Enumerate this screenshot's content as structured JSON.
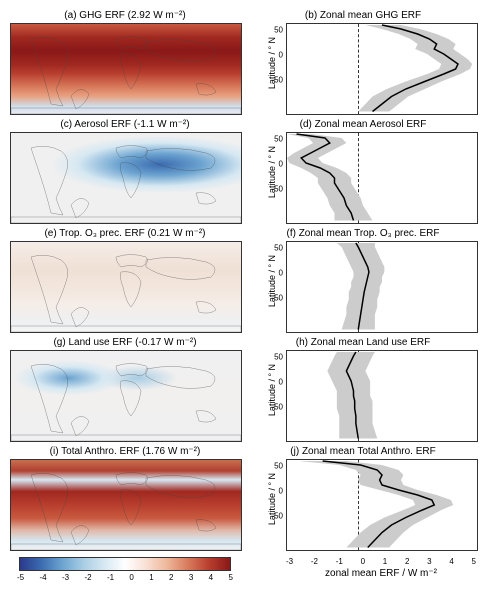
{
  "xlim": [
    -3,
    5
  ],
  "xtick_labels": [
    "-3",
    "-2",
    "-1",
    "0",
    "1",
    "2",
    "3",
    "4",
    "5"
  ],
  "xaxis_label": "zonal mean ERF / W m⁻²",
  "colorbar_ticks": [
    "-5",
    "-4",
    "-3",
    "-2",
    "-1",
    "0",
    "1",
    "2",
    "3",
    "4",
    "5"
  ],
  "colorbar_gradient": [
    "#2a3a8c",
    "#3b6bb0",
    "#6ba3d0",
    "#a8cde4",
    "#d6e8f2",
    "#ffffff",
    "#f8e0d4",
    "#eeb79a",
    "#d87a5c",
    "#b83e2e",
    "#8a1818"
  ],
  "ylabel": "Latitude / ° N",
  "ytick_values": [
    50,
    0,
    -50
  ],
  "lat_range": [
    -90,
    90
  ],
  "uncertainty_color": "#cccccc",
  "line_color": "#000000",
  "panels": [
    {
      "map_title": "(a) GHG ERF (2.92 W m⁻²)",
      "zonal_title": "(b) Zonal mean GHG ERF",
      "map_gradient": "linear-gradient(180deg,#c95a40 0%,#a02820 15%,#8a1818 30%,#a02820 45%,#b83e2e 55%,#d87a5c 70%,#e8a080 80%,#d0e0ee 92%,#e8e8f0 100%)",
      "lats": [
        -85,
        -70,
        -55,
        -40,
        -25,
        -10,
        0,
        10,
        20,
        30,
        40,
        50,
        60,
        70,
        80,
        88
      ],
      "vals": [
        0.6,
        1.0,
        1.4,
        2.0,
        2.8,
        3.6,
        4.1,
        4.2,
        3.9,
        3.6,
        3.2,
        3.3,
        3.0,
        2.5,
        1.8,
        1.0
      ],
      "low": [
        0.0,
        0.3,
        0.6,
        1.2,
        2.0,
        2.9,
        3.4,
        3.5,
        3.2,
        2.9,
        2.4,
        2.5,
        2.2,
        1.7,
        1.0,
        0.3
      ],
      "high": [
        1.3,
        1.7,
        2.1,
        2.8,
        3.5,
        4.3,
        4.7,
        4.8,
        4.6,
        4.3,
        4.0,
        4.1,
        3.8,
        3.3,
        2.6,
        1.8
      ]
    },
    {
      "map_title": "(c) Aerosol ERF (-1.1 W m⁻²)",
      "zonal_title": "(d) Zonal mean Aerosol ERF",
      "map_gradient": "radial-gradient(ellipse 60% 40% at 65% 35%, #3b6bb0 0%, #6ba3d0 30%, #d6e8f2 60%, #f0f0f0 80%), linear-gradient(180deg,#c8d8e8 0%,#d6e8f2 30%,#e8f0f5 60%,#f0f0f0 100%)",
      "lats": [
        -85,
        -70,
        -55,
        -40,
        -25,
        -10,
        0,
        10,
        20,
        30,
        40,
        50,
        60,
        70,
        80,
        88
      ],
      "vals": [
        -0.2,
        -0.3,
        -0.5,
        -0.6,
        -0.8,
        -1.0,
        -1.0,
        -1.2,
        -1.6,
        -2.2,
        -2.4,
        -2.0,
        -1.6,
        -1.2,
        -1.4,
        -2.6
      ],
      "low": [
        -1.0,
        -1.0,
        -1.2,
        -1.3,
        -1.5,
        -1.7,
        -1.7,
        -2.0,
        -2.4,
        -2.9,
        -3.0,
        -2.7,
        -2.3,
        -1.9,
        -2.1,
        -3.0
      ],
      "high": [
        0.6,
        0.4,
        0.2,
        0.1,
        -0.1,
        -0.3,
        -0.3,
        -0.5,
        -0.9,
        -1.5,
        -1.7,
        -1.3,
        -0.9,
        -0.5,
        -0.7,
        -2.0
      ]
    },
    {
      "map_title": "(e) Trop. O₃ prec. ERF (0.21 W m⁻²)",
      "zonal_title": "(f) Zonal mean Trop. O₃ prec. ERF",
      "map_gradient": "linear-gradient(180deg,#f5ede8 0%,#f0e0d5 30%,#f2e6dd 50%,#f5ede8 70%,#eef0f3 90%,#f5f5f5 100%)",
      "lats": [
        -85,
        -70,
        -55,
        -40,
        -25,
        -10,
        0,
        10,
        20,
        30,
        40,
        50,
        60,
        70,
        80,
        88
      ],
      "vals": [
        0.0,
        0.05,
        0.1,
        0.15,
        0.2,
        0.25,
        0.3,
        0.35,
        0.4,
        0.45,
        0.4,
        0.3,
        0.2,
        0.1,
        0.0,
        -0.1
      ],
      "low": [
        -0.7,
        -0.6,
        -0.5,
        -0.5,
        -0.4,
        -0.4,
        -0.3,
        -0.3,
        -0.2,
        -0.2,
        -0.3,
        -0.4,
        -0.5,
        -0.6,
        -0.7,
        -0.9
      ],
      "high": [
        0.7,
        0.7,
        0.7,
        0.8,
        0.8,
        0.9,
        0.9,
        1.0,
        1.0,
        1.1,
        1.1,
        1.0,
        0.9,
        0.8,
        0.7,
        0.7
      ]
    },
    {
      "map_title": "(g) Land use ERF (-0.17 W m⁻²)",
      "zonal_title": "(h) Zonal mean Land use ERF",
      "map_gradient": "radial-gradient(ellipse 30% 25% at 25% 30%, #6ba3d0 0%, #d6e8f2 50%, transparent 80%), radial-gradient(ellipse 25% 20% at 55% 30%, #a8cde4 0%, transparent 70%), linear-gradient(180deg,#f0f0f2 0%,#f2f0ee 50%,#f0f0f2 100%)",
      "lats": [
        -85,
        -70,
        -55,
        -40,
        -25,
        -10,
        0,
        10,
        20,
        30,
        40,
        50,
        60,
        70,
        80,
        88
      ],
      "vals": [
        0.0,
        -0.05,
        -0.1,
        -0.1,
        -0.15,
        -0.15,
        -0.2,
        -0.2,
        -0.25,
        -0.3,
        -0.4,
        -0.5,
        -0.4,
        -0.3,
        -0.2,
        -0.1
      ],
      "low": [
        -0.8,
        -0.8,
        -0.8,
        -0.8,
        -0.9,
        -0.9,
        -0.9,
        -0.9,
        -1.0,
        -1.1,
        -1.2,
        -1.3,
        -1.2,
        -1.1,
        -1.0,
        -0.9
      ],
      "high": [
        0.8,
        0.7,
        0.6,
        0.6,
        0.6,
        0.6,
        0.5,
        0.5,
        0.5,
        0.5,
        0.4,
        0.3,
        0.4,
        0.5,
        0.6,
        0.7
      ]
    },
    {
      "map_title": "(i) Total Anthro. ERF (1.76 W m⁻²)",
      "zonal_title": "(j) Zonal mean Total Anthro. ERF",
      "map_gradient": "linear-gradient(180deg,#c87050 0%,#b04030 12%,#d6e8f2 22%,#a02820 35%,#b83e2e 50%,#c95a40 65%,#e0b8a8 78%,#d6e8f2 90%,#f0f0f2 100%)",
      "lats": [
        -85,
        -70,
        -55,
        -40,
        -25,
        -10,
        0,
        10,
        20,
        30,
        40,
        50,
        60,
        70,
        80,
        88
      ],
      "vals": [
        0.4,
        0.7,
        1.0,
        1.4,
        2.0,
        2.7,
        3.2,
        3.1,
        2.5,
        1.7,
        1.0,
        0.9,
        1.0,
        0.8,
        0.1,
        -1.5
      ],
      "low": [
        -0.5,
        -0.2,
        0.1,
        0.5,
        1.1,
        1.9,
        2.4,
        2.3,
        1.7,
        0.9,
        0.1,
        0.0,
        0.1,
        -0.1,
        -0.8,
        -2.5
      ],
      "high": [
        1.3,
        1.6,
        1.9,
        2.3,
        2.9,
        3.5,
        4.0,
        3.9,
        3.3,
        2.5,
        1.9,
        1.8,
        1.9,
        1.7,
        1.0,
        -0.5
      ]
    }
  ]
}
